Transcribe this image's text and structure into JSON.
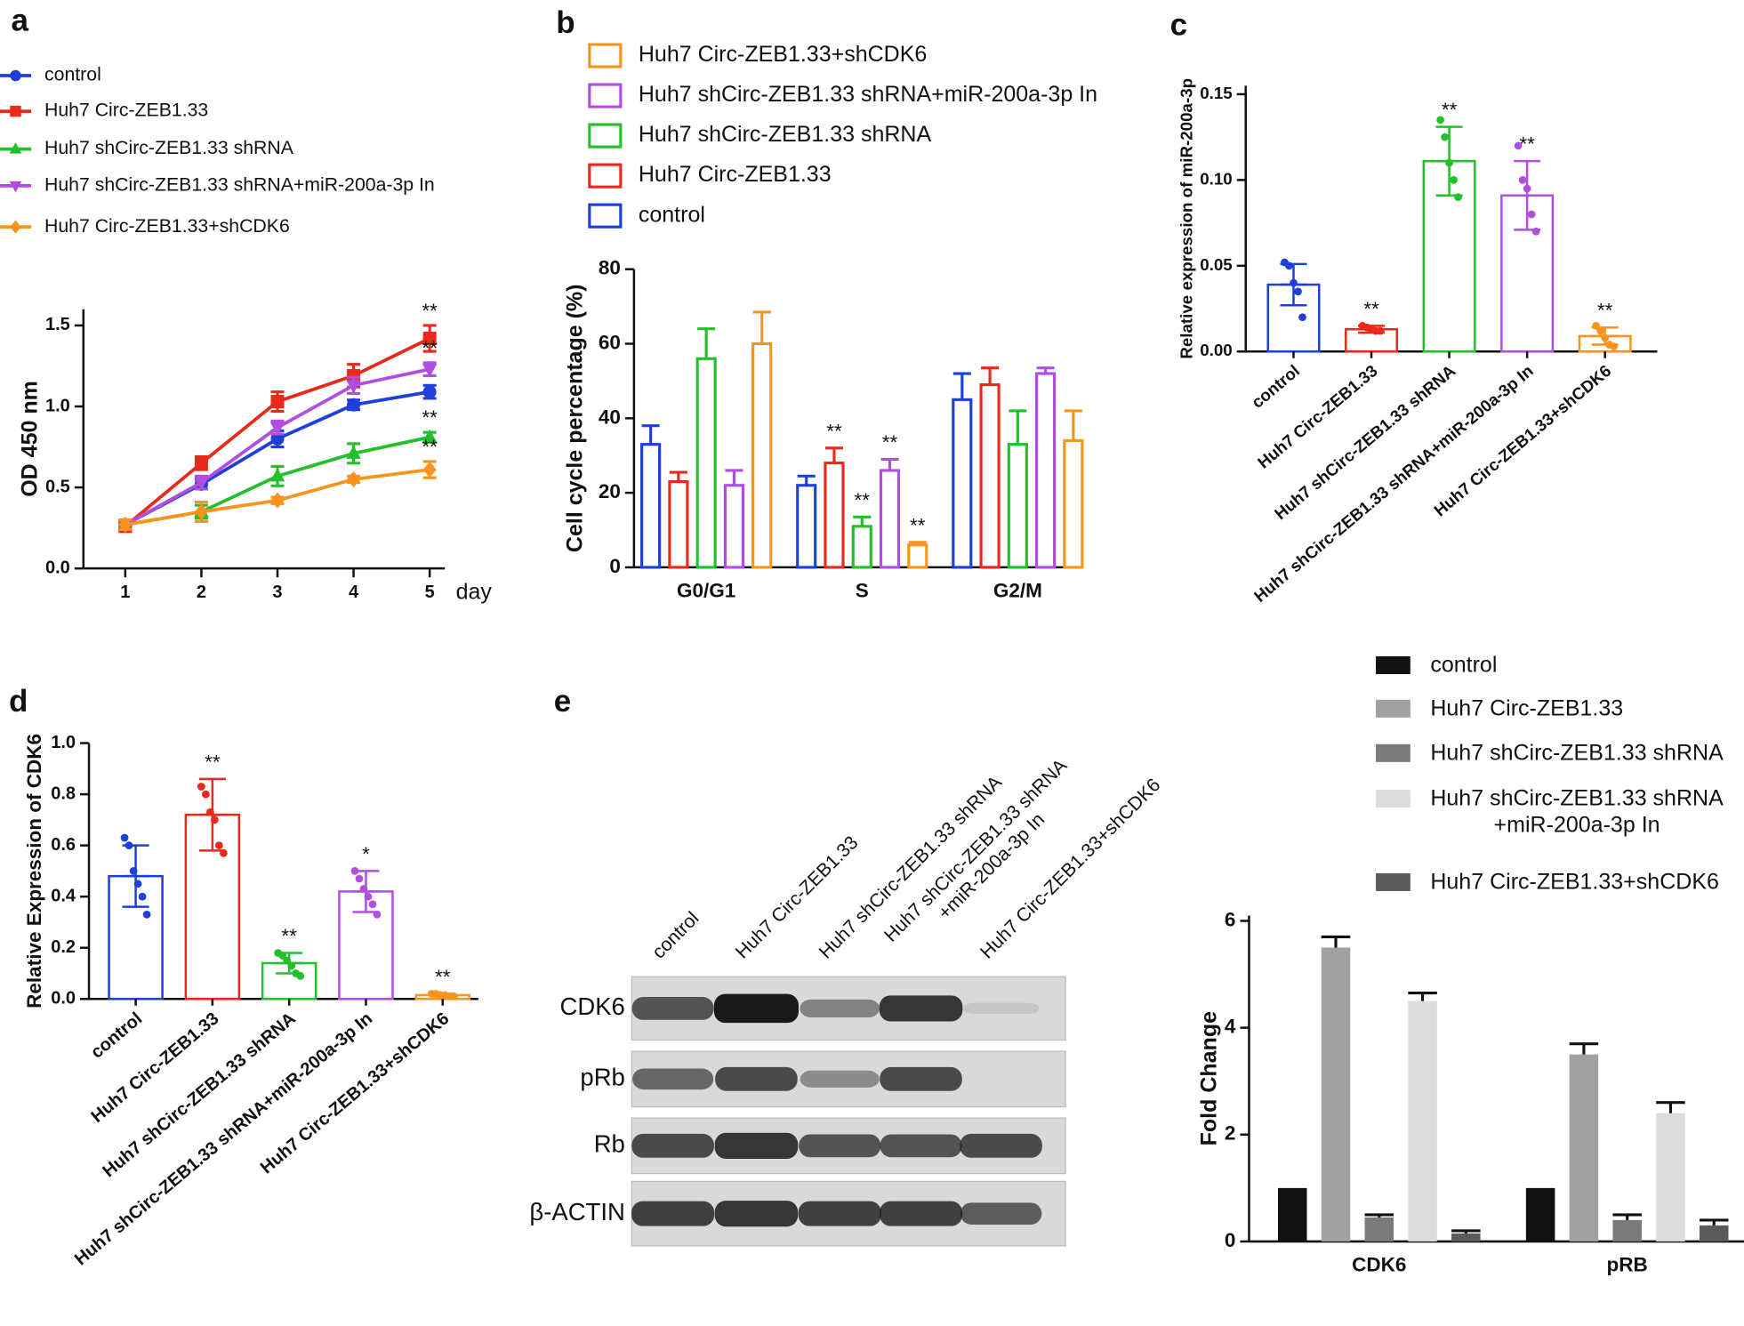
{
  "chart_data": [
    {
      "panel": "a",
      "type": "line",
      "x": [
        1,
        2,
        3,
        4,
        5
      ],
      "xlim": [
        0.45,
        5.2
      ],
      "xticks": [
        1,
        2,
        3,
        4,
        5
      ],
      "xlabel": "day",
      "ylabel": "OD 450 nm",
      "ylim": [
        0,
        1.6
      ],
      "yticks": [
        {
          "value": 0,
          "label": "0.0"
        },
        0.5,
        {
          "value": 1,
          "label": "1.0"
        },
        1.5
      ],
      "series": [
        {
          "name": "control",
          "color": "#1f3fdb",
          "marker": "circle",
          "values": [
            0.27,
            0.52,
            0.8,
            1.01,
            1.09
          ],
          "errors": [
            0.03,
            0.03,
            0.05,
            0.03,
            0.04
          ]
        },
        {
          "name": "Huh7 Circ-ZEB1.33",
          "color": "#e8291c",
          "marker": "square",
          "values": [
            0.26,
            0.65,
            1.03,
            1.19,
            1.42
          ],
          "errors": [
            0.03,
            0.04,
            0.06,
            0.07,
            0.08
          ],
          "significance": [
            null,
            null,
            null,
            null,
            "**"
          ]
        },
        {
          "name": "Huh7 shCirc-ZEB1.33 shRNA",
          "color": "#22c02a",
          "marker": "triangle-up",
          "values": [
            0.27,
            0.35,
            0.57,
            0.71,
            0.81
          ],
          "errors": [
            0.03,
            0.04,
            0.06,
            0.06,
            0.03
          ],
          "significance": [
            null,
            null,
            null,
            null,
            "**"
          ]
        },
        {
          "name": "Huh7 shCirc-ZEB1.33 shRNA+miR-200a-3p In",
          "color": "#b04ee0",
          "marker": "triangle-down",
          "values": [
            0.27,
            0.53,
            0.87,
            1.13,
            1.23
          ],
          "errors": [
            0.03,
            0.04,
            0.04,
            0.05,
            0.04
          ],
          "significance": [
            null,
            null,
            null,
            null,
            "**"
          ]
        },
        {
          "name": "Huh7 Circ-ZEB1.33+shCDK6",
          "color": "#f7941d",
          "marker": "diamond",
          "values": [
            0.27,
            0.35,
            0.42,
            0.55,
            0.61
          ],
          "errors": [
            0.03,
            0.06,
            0.02,
            0.02,
            0.05
          ],
          "significance": [
            null,
            null,
            null,
            null,
            "**"
          ]
        }
      ]
    },
    {
      "panel": "b",
      "type": "bar",
      "bar_style": "outline",
      "legend_order": "reversed",
      "categories": [
        "G0/G1",
        "S",
        "G2/M"
      ],
      "ylabel": "Cell cycle percentage (%)",
      "ylim": [
        0,
        80
      ],
      "yticks": [
        0,
        20,
        40,
        60,
        80
      ],
      "series": [
        {
          "name": "control",
          "color": "#1f3fdb",
          "values": [
            33,
            22,
            45
          ],
          "errors": [
            5,
            2.5,
            7
          ]
        },
        {
          "name": "Huh7 Circ-ZEB1.33",
          "color": "#e8291c",
          "values": [
            23,
            28,
            49
          ],
          "errors": [
            2.5,
            4,
            4.5
          ],
          "significance": [
            null,
            "**",
            null
          ]
        },
        {
          "name": "Huh7 shCirc-ZEB1.33 shRNA",
          "color": "#22c02a",
          "values": [
            56,
            11,
            33
          ],
          "errors": [
            8,
            2.5,
            9
          ],
          "significance": [
            null,
            "**",
            null
          ]
        },
        {
          "name": "Huh7 shCirc-ZEB1.33 shRNA+miR-200a-3p In",
          "color": "#b04ee0",
          "values": [
            22,
            26,
            52
          ],
          "errors": [
            4,
            3,
            1.5
          ],
          "significance": [
            null,
            "**",
            null
          ]
        },
        {
          "name": "Huh7 Circ-ZEB1.33+shCDK6",
          "color": "#f7941d",
          "values": [
            60,
            6,
            34
          ],
          "errors": [
            8.5,
            0.7,
            8
          ],
          "significance": [
            null,
            "**",
            null
          ]
        }
      ]
    },
    {
      "panel": "c",
      "type": "dot-bar",
      "ylabel": "Relative expression of miR-200a-3p",
      "categories": [
        "control",
        "Huh7 Circ-ZEB1.33",
        "Huh7 shCirc-ZEB1.33 shRNA",
        "Huh7 shCirc-ZEB1.33 shRNA+miR-200a-3p In",
        "Huh7 Circ-ZEB1.33+shCDK6"
      ],
      "ylim": [
        0,
        0.155
      ],
      "yticks": [
        {
          "value": 0,
          "label": "0.00"
        },
        0.05,
        {
          "value": 0.1,
          "label": "0.10"
        },
        0.15
      ],
      "colors": [
        "#1f3fdb",
        "#e8291c",
        "#22c02a",
        "#b04ee0",
        "#f7941d"
      ],
      "values": [
        0.039,
        0.013,
        0.111,
        0.091,
        0.009
      ],
      "errors": [
        0.012,
        0.002,
        0.02,
        0.02,
        0.005
      ],
      "points": [
        [
          0.052,
          0.05,
          0.04,
          0.035,
          0.02
        ],
        [
          0.015,
          0.014,
          0.013,
          0.012,
          0.012
        ],
        [
          0.135,
          0.125,
          0.11,
          0.1,
          0.09
        ],
        [
          0.12,
          0.1,
          0.095,
          0.08,
          0.07
        ],
        [
          0.015,
          0.012,
          0.008,
          0.004,
          0.003
        ]
      ],
      "significance": [
        null,
        "**",
        "**",
        "**",
        "**"
      ]
    },
    {
      "panel": "d",
      "type": "dot-bar",
      "ylabel": "Relative Expression of CDK6",
      "categories": [
        "control",
        "Huh7 Circ-ZEB1.33",
        "Huh7 shCirc-ZEB1.33 shRNA",
        "Huh7 shCirc-ZEB1.33 shRNA+miR-200a-3p In",
        "Huh7 Circ-ZEB1.33+shCDK6"
      ],
      "ylim": [
        0,
        1.0
      ],
      "yticks": [
        {
          "value": 0,
          "label": "0.0"
        },
        0.2,
        0.4,
        0.6,
        0.8,
        {
          "value": 1,
          "label": "1.0"
        }
      ],
      "colors": [
        "#1f3fdb",
        "#e8291c",
        "#22c02a",
        "#b04ee0",
        "#f7941d"
      ],
      "values": [
        0.48,
        0.72,
        0.14,
        0.42,
        0.015
      ],
      "errors": [
        0.12,
        0.14,
        0.04,
        0.08,
        0.005
      ],
      "points": [
        [
          0.63,
          0.6,
          0.5,
          0.45,
          0.4,
          0.33
        ],
        [
          0.83,
          0.8,
          0.73,
          0.7,
          0.6,
          0.57
        ],
        [
          0.18,
          0.17,
          0.15,
          0.13,
          0.1,
          0.09
        ],
        [
          0.5,
          0.47,
          0.43,
          0.4,
          0.37,
          0.33
        ],
        [
          0.02,
          0.02,
          0.015,
          0.015,
          0.01,
          0.01
        ]
      ],
      "significance": [
        null,
        "**",
        "**",
        "*",
        "**"
      ]
    },
    {
      "type": "bar",
      "bar_style": "filled",
      "categories": [
        "CDK6",
        "pRB"
      ],
      "ylabel": "Fold Change",
      "ylim": [
        0,
        6.1
      ],
      "yticks": [
        0,
        2,
        4,
        6
      ],
      "series": [
        {
          "name": "control",
          "color": "#111111",
          "values": [
            1,
            1
          ],
          "errors": [
            0,
            0
          ]
        },
        {
          "name": "Huh7 Circ-ZEB1.33",
          "color": "#a0a0a0",
          "values": [
            5.5,
            3.5
          ],
          "errors": [
            0.2,
            0.2
          ]
        },
        {
          "name": "Huh7 shCirc-ZEB1.33 shRNA",
          "color": "#7a7a7a",
          "values": [
            0.45,
            0.4
          ],
          "errors": [
            0.05,
            0.1
          ]
        },
        {
          "name": "Huh7 shCirc-ZEB1.33 shRNA\n+miR-200a-3p In",
          "color": "#dcdcdc",
          "values": [
            4.5,
            2.4
          ],
          "errors": [
            0.15,
            0.2
          ]
        },
        {
          "name": "Huh7 Circ-ZEB1.33+shCDK6",
          "color": "#5a5a5a",
          "values": [
            0.15,
            0.3
          ],
          "errors": [
            0.05,
            0.1
          ]
        }
      ]
    }
  ],
  "blot": {
    "panel": "e",
    "lanes": [
      "control",
      "Huh7 Circ-ZEB1.33",
      "Huh7 shCirc-ZEB1.33 shRNA",
      "Huh7 shCirc-ZEB1.33 shRNA\n+miR-200a-3p In",
      "Huh7 Circ-ZEB1.33+shCDK6"
    ],
    "rows": [
      "CDK6",
      "pRb",
      "Rb",
      "β-ACTIN"
    ]
  }
}
